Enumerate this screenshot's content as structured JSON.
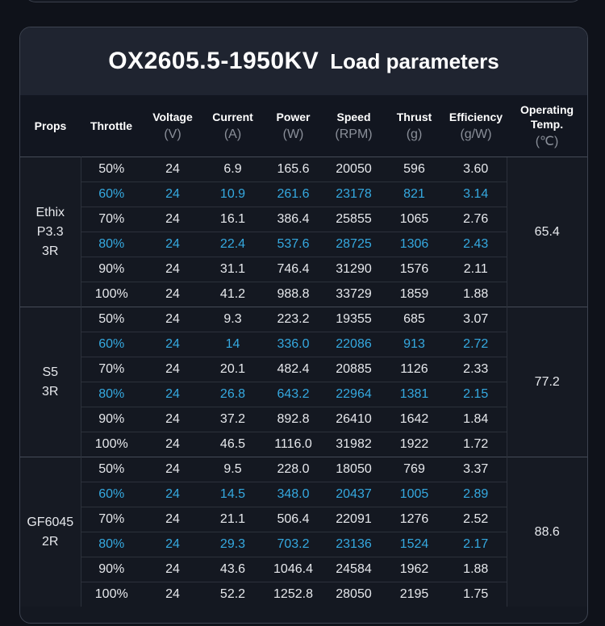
{
  "title": {
    "model": "OX2605.5-1950KV",
    "text": "Load parameters"
  },
  "headers": [
    {
      "label": "Props",
      "unit": ""
    },
    {
      "label": "Throttle",
      "unit": ""
    },
    {
      "label": "Voltage",
      "unit": "(V)"
    },
    {
      "label": "Current",
      "unit": "(A)"
    },
    {
      "label": "Power",
      "unit": "(W)"
    },
    {
      "label": "Speed",
      "unit": "(RPM)"
    },
    {
      "label": "Thrust",
      "unit": "(g)"
    },
    {
      "label": "Efficiency",
      "unit": "(g/W)"
    },
    {
      "label": "Operating Temp.",
      "unit": "(℃)"
    }
  ],
  "groups": [
    {
      "prop": [
        "Ethix",
        "P3.3",
        "3R"
      ],
      "temp": "65.4",
      "rows": [
        [
          "50%",
          "24",
          "6.9",
          "165.6",
          "20050",
          "596",
          "3.60"
        ],
        [
          "60%",
          "24",
          "10.9",
          "261.6",
          "23178",
          "821",
          "3.14"
        ],
        [
          "70%",
          "24",
          "16.1",
          "386.4",
          "25855",
          "1065",
          "2.76"
        ],
        [
          "80%",
          "24",
          "22.4",
          "537.6",
          "28725",
          "1306",
          "2.43"
        ],
        [
          "90%",
          "24",
          "31.1",
          "746.4",
          "31290",
          "1576",
          "2.11"
        ],
        [
          "100%",
          "24",
          "41.2",
          "988.8",
          "33729",
          "1859",
          "1.88"
        ]
      ]
    },
    {
      "prop": [
        "S5",
        "3R"
      ],
      "temp": "77.2",
      "rows": [
        [
          "50%",
          "24",
          "9.3",
          "223.2",
          "19355",
          "685",
          "3.07"
        ],
        [
          "60%",
          "24",
          "14",
          "336.0",
          "22086",
          "913",
          "2.72"
        ],
        [
          "70%",
          "24",
          "20.1",
          "482.4",
          "20885",
          "1126",
          "2.33"
        ],
        [
          "80%",
          "24",
          "26.8",
          "643.2",
          "22964",
          "1381",
          "2.15"
        ],
        [
          "90%",
          "24",
          "37.2",
          "892.8",
          "26410",
          "1642",
          "1.84"
        ],
        [
          "100%",
          "24",
          "46.5",
          "1116.0",
          "31982",
          "1922",
          "1.72"
        ]
      ]
    },
    {
      "prop": [
        "GF6045",
        "2R"
      ],
      "temp": "88.6",
      "rows": [
        [
          "50%",
          "24",
          "9.5",
          "228.0",
          "18050",
          "769",
          "3.37"
        ],
        [
          "60%",
          "24",
          "14.5",
          "348.0",
          "20437",
          "1005",
          "2.89"
        ],
        [
          "70%",
          "24",
          "21.1",
          "506.4",
          "22091",
          "1276",
          "2.52"
        ],
        [
          "80%",
          "24",
          "29.3",
          "703.2",
          "23136",
          "1524",
          "2.17"
        ],
        [
          "90%",
          "24",
          "43.6",
          "1046.4",
          "24584",
          "1962",
          "1.88"
        ],
        [
          "100%",
          "24",
          "52.2",
          "1252.8",
          "28050",
          "2195",
          "1.75"
        ]
      ]
    }
  ],
  "colors": {
    "highlight": "#35a9e0",
    "text": "#e6e8ec",
    "background": "#141821"
  }
}
